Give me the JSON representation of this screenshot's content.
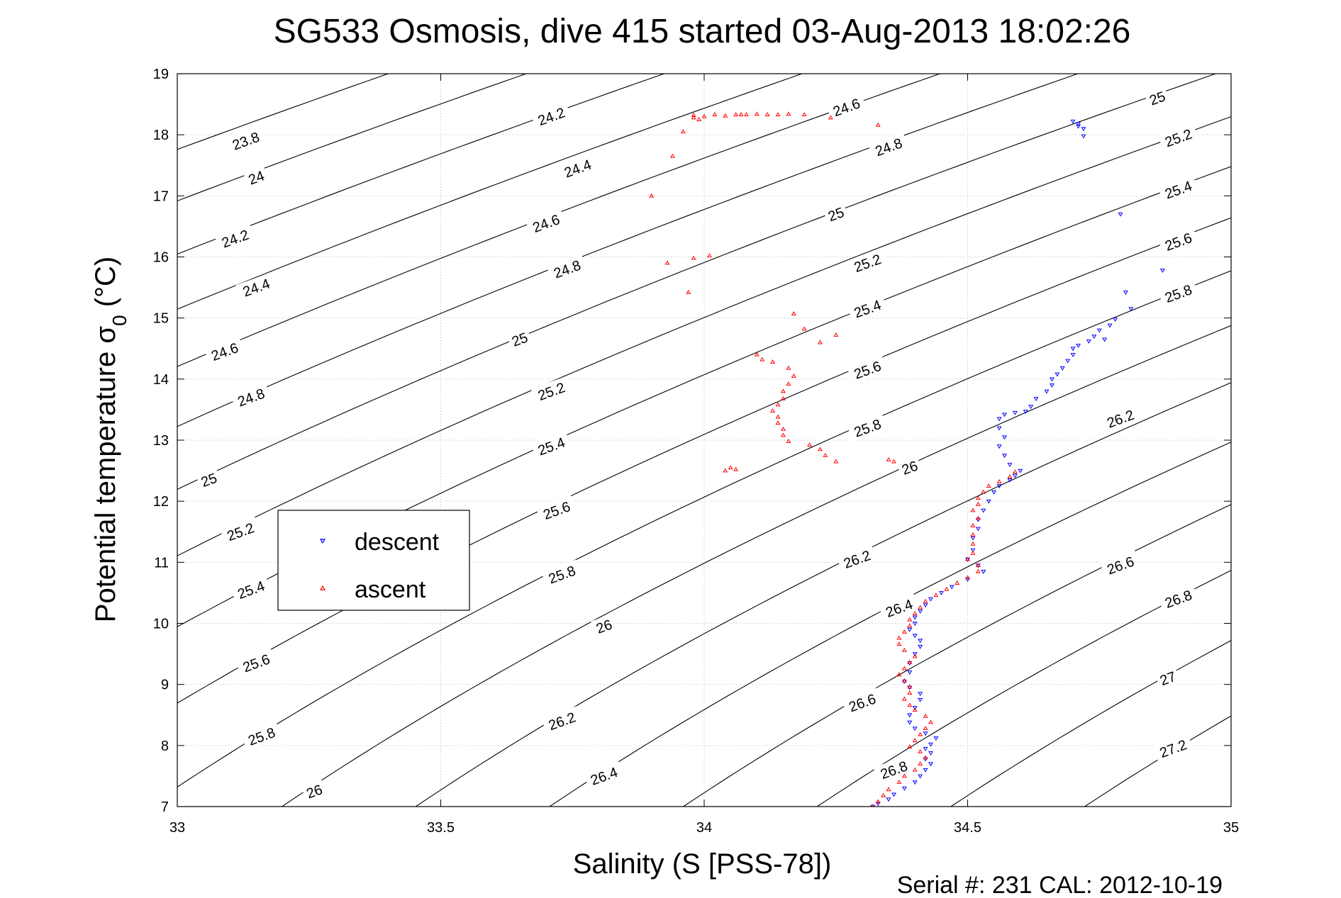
{
  "chart_data": {
    "type": "scatter",
    "title": "SG533 Osmosis, dive 415 started 03-Aug-2013 18:02:26",
    "xlabel": "Salinity (S [PSS-78])",
    "ylabel_main": "Potential temperature σ",
    "ylabel_sub": "0",
    "ylabel_unit": " (°C)",
    "footer": "Serial #: 231  CAL: 2012-10-19",
    "xlim": [
      33,
      35
    ],
    "ylim": [
      7,
      19
    ],
    "x_ticks": [
      "33",
      "33.5",
      "34",
      "34.5",
      "35"
    ],
    "y_ticks": [
      "7",
      "8",
      "9",
      "10",
      "11",
      "12",
      "13",
      "14",
      "15",
      "16",
      "17",
      "18",
      "19"
    ],
    "grid": "dotted",
    "legend_position": "center-left",
    "contours": {
      "quantity": "sigma-theta density",
      "levels": [
        23.8,
        24,
        24.2,
        24.4,
        24.6,
        24.8,
        25,
        25.2,
        25.4,
        25.6,
        25.8,
        26,
        26.2,
        26.4,
        26.6,
        26.8,
        27,
        27.2
      ],
      "labels": [
        {
          "text": "23.8",
          "x": 33.13,
          "y": 17.9
        },
        {
          "text": "24",
          "x": 33.15,
          "y": 17.3
        },
        {
          "text": "24.2",
          "x": 33.11,
          "y": 16.3
        },
        {
          "text": "24.4",
          "x": 33.15,
          "y": 15.5
        },
        {
          "text": "24.6",
          "x": 33.09,
          "y": 14.45
        },
        {
          "text": "24.8",
          "x": 33.14,
          "y": 13.7
        },
        {
          "text": "25",
          "x": 33.06,
          "y": 12.35
        },
        {
          "text": "25.2",
          "x": 33.12,
          "y": 11.5
        },
        {
          "text": "25.4",
          "x": 33.14,
          "y": 10.55
        },
        {
          "text": "25.6",
          "x": 33.15,
          "y": 9.35
        },
        {
          "text": "25.8",
          "x": 33.16,
          "y": 8.15
        },
        {
          "text": "26",
          "x": 33.26,
          "y": 7.25
        },
        {
          "text": "24.2",
          "x": 33.71,
          "y": 18.3
        },
        {
          "text": "24.4",
          "x": 33.76,
          "y": 17.45
        },
        {
          "text": "24.6",
          "x": 33.7,
          "y": 16.55
        },
        {
          "text": "24.8",
          "x": 33.74,
          "y": 15.8
        },
        {
          "text": "25",
          "x": 33.65,
          "y": 14.65
        },
        {
          "text": "25.2",
          "x": 33.71,
          "y": 13.8
        },
        {
          "text": "25.4",
          "x": 33.71,
          "y": 12.9
        },
        {
          "text": "25.6",
          "x": 33.72,
          "y": 11.85
        },
        {
          "text": "25.8",
          "x": 33.73,
          "y": 10.8
        },
        {
          "text": "26",
          "x": 33.81,
          "y": 9.95
        },
        {
          "text": "26.2",
          "x": 33.73,
          "y": 8.4
        },
        {
          "text": "26.4",
          "x": 33.81,
          "y": 7.5
        },
        {
          "text": "24.6",
          "x": 34.27,
          "y": 18.45
        },
        {
          "text": "24.8",
          "x": 34.35,
          "y": 17.8
        },
        {
          "text": "25",
          "x": 34.25,
          "y": 16.7
        },
        {
          "text": "25.2",
          "x": 34.31,
          "y": 15.9
        },
        {
          "text": "25.4",
          "x": 34.31,
          "y": 15.15
        },
        {
          "text": "25.6",
          "x": 34.31,
          "y": 14.15
        },
        {
          "text": "25.8",
          "x": 34.31,
          "y": 13.2
        },
        {
          "text": "26",
          "x": 34.39,
          "y": 12.55
        },
        {
          "text": "26.2",
          "x": 34.29,
          "y": 11.05
        },
        {
          "text": "26.4",
          "x": 34.37,
          "y": 10.25
        },
        {
          "text": "26.6",
          "x": 34.3,
          "y": 8.7
        },
        {
          "text": "26.8",
          "x": 34.36,
          "y": 7.6
        },
        {
          "text": "25",
          "x": 34.86,
          "y": 18.6
        },
        {
          "text": "25.2",
          "x": 34.9,
          "y": 17.95
        },
        {
          "text": "25.4",
          "x": 34.9,
          "y": 17.1
        },
        {
          "text": "25.6",
          "x": 34.9,
          "y": 16.25
        },
        {
          "text": "25.8",
          "x": 34.9,
          "y": 15.4
        },
        {
          "text": "26.2",
          "x": 34.79,
          "y": 13.35
        },
        {
          "text": "26.6",
          "x": 34.79,
          "y": 10.95
        },
        {
          "text": "26.8",
          "x": 34.9,
          "y": 10.4
        },
        {
          "text": "27",
          "x": 34.88,
          "y": 9.1
        },
        {
          "text": "27.2",
          "x": 34.89,
          "y": 7.95
        }
      ]
    },
    "series": [
      {
        "name": "descent",
        "color": "#0000ff",
        "marker": "triangle-down",
        "points": [
          [
            34.7,
            18.22
          ],
          [
            34.71,
            18.18
          ],
          [
            34.71,
            18.14
          ],
          [
            34.72,
            18.1
          ],
          [
            34.72,
            17.98
          ],
          [
            34.79,
            16.7
          ],
          [
            34.87,
            15.78
          ],
          [
            34.8,
            15.42
          ],
          [
            34.81,
            15.15
          ],
          [
            34.78,
            14.98
          ],
          [
            34.77,
            14.88
          ],
          [
            34.75,
            14.8
          ],
          [
            34.74,
            14.7
          ],
          [
            34.76,
            14.65
          ],
          [
            34.73,
            14.62
          ],
          [
            34.71,
            14.55
          ],
          [
            34.7,
            14.5
          ],
          [
            34.7,
            14.4
          ],
          [
            34.69,
            14.3
          ],
          [
            34.68,
            14.18
          ],
          [
            34.67,
            14.08
          ],
          [
            34.66,
            14.0
          ],
          [
            34.66,
            13.9
          ],
          [
            34.65,
            13.8
          ],
          [
            34.63,
            13.68
          ],
          [
            34.62,
            13.55
          ],
          [
            34.61,
            13.47
          ],
          [
            34.59,
            13.45
          ],
          [
            34.57,
            13.42
          ],
          [
            34.56,
            13.35
          ],
          [
            34.56,
            13.2
          ],
          [
            34.57,
            13.05
          ],
          [
            34.56,
            12.9
          ],
          [
            34.57,
            12.75
          ],
          [
            34.58,
            12.6
          ],
          [
            34.6,
            12.5
          ],
          [
            34.59,
            12.42
          ],
          [
            34.58,
            12.35
          ],
          [
            34.56,
            12.25
          ],
          [
            34.55,
            12.15
          ],
          [
            34.54,
            12.0
          ],
          [
            34.53,
            11.85
          ],
          [
            34.52,
            11.7
          ],
          [
            34.52,
            11.55
          ],
          [
            34.51,
            11.4
          ],
          [
            34.51,
            11.2
          ],
          [
            34.5,
            11.05
          ],
          [
            34.52,
            10.95
          ],
          [
            34.53,
            10.85
          ],
          [
            34.5,
            10.72
          ],
          [
            34.47,
            10.6
          ],
          [
            34.45,
            10.5
          ],
          [
            34.43,
            10.4
          ],
          [
            34.42,
            10.3
          ],
          [
            34.41,
            10.2
          ],
          [
            34.4,
            10.1
          ],
          [
            34.4,
            10.0
          ],
          [
            34.39,
            9.9
          ],
          [
            34.4,
            9.8
          ],
          [
            34.41,
            9.72
          ],
          [
            34.41,
            9.62
          ],
          [
            34.4,
            9.5
          ],
          [
            34.39,
            9.35
          ],
          [
            34.39,
            9.2
          ],
          [
            34.38,
            9.05
          ],
          [
            34.39,
            8.95
          ],
          [
            34.41,
            8.85
          ],
          [
            34.41,
            8.75
          ],
          [
            34.4,
            8.62
          ],
          [
            34.39,
            8.5
          ],
          [
            34.39,
            8.38
          ],
          [
            34.4,
            8.28
          ],
          [
            34.42,
            8.2
          ],
          [
            34.44,
            8.12
          ],
          [
            34.43,
            8.02
          ],
          [
            34.42,
            7.95
          ],
          [
            34.43,
            7.88
          ],
          [
            34.42,
            7.78
          ],
          [
            34.43,
            7.7
          ],
          [
            34.42,
            7.6
          ],
          [
            34.41,
            7.5
          ],
          [
            34.4,
            7.4
          ],
          [
            34.38,
            7.3
          ],
          [
            34.36,
            7.2
          ],
          [
            34.35,
            7.12
          ],
          [
            34.33,
            7.05
          ],
          [
            34.32,
            7.0
          ]
        ]
      },
      {
        "name": "ascent",
        "color": "#ff0000",
        "marker": "triangle-up",
        "points": [
          [
            33.98,
            18.32
          ],
          [
            33.98,
            18.28
          ],
          [
            34.0,
            18.3
          ],
          [
            33.99,
            18.25
          ],
          [
            34.02,
            18.33
          ],
          [
            34.04,
            18.31
          ],
          [
            34.06,
            18.33
          ],
          [
            34.07,
            18.33
          ],
          [
            34.08,
            18.33
          ],
          [
            34.1,
            18.34
          ],
          [
            34.12,
            18.33
          ],
          [
            34.14,
            18.33
          ],
          [
            34.16,
            18.34
          ],
          [
            34.19,
            18.33
          ],
          [
            34.24,
            18.28
          ],
          [
            34.33,
            18.16
          ],
          [
            33.96,
            18.05
          ],
          [
            33.94,
            17.65
          ],
          [
            33.9,
            17.0
          ],
          [
            34.01,
            16.02
          ],
          [
            33.98,
            15.98
          ],
          [
            33.93,
            15.9
          ],
          [
            33.97,
            15.42
          ],
          [
            34.17,
            15.07
          ],
          [
            34.19,
            14.82
          ],
          [
            34.25,
            14.72
          ],
          [
            34.22,
            14.6
          ],
          [
            34.1,
            14.4
          ],
          [
            34.11,
            14.32
          ],
          [
            34.13,
            14.28
          ],
          [
            34.16,
            14.18
          ],
          [
            34.17,
            14.05
          ],
          [
            34.16,
            13.92
          ],
          [
            34.15,
            13.8
          ],
          [
            34.15,
            13.68
          ],
          [
            34.14,
            13.58
          ],
          [
            34.13,
            13.48
          ],
          [
            34.14,
            13.38
          ],
          [
            34.14,
            13.28
          ],
          [
            34.15,
            13.18
          ],
          [
            34.15,
            13.08
          ],
          [
            34.16,
            12.98
          ],
          [
            34.2,
            12.92
          ],
          [
            34.22,
            12.85
          ],
          [
            34.23,
            12.75
          ],
          [
            34.25,
            12.65
          ],
          [
            34.05,
            12.55
          ],
          [
            34.06,
            12.52
          ],
          [
            34.04,
            12.5
          ],
          [
            34.35,
            12.68
          ],
          [
            34.36,
            12.65
          ],
          [
            34.59,
            12.48
          ],
          [
            34.58,
            12.4
          ],
          [
            34.56,
            12.32
          ],
          [
            34.54,
            12.25
          ],
          [
            34.53,
            12.15
          ],
          [
            34.52,
            12.05
          ],
          [
            34.52,
            11.95
          ],
          [
            34.51,
            11.85
          ],
          [
            34.52,
            11.72
          ],
          [
            34.51,
            11.6
          ],
          [
            34.51,
            11.45
          ],
          [
            34.51,
            11.3
          ],
          [
            34.51,
            11.15
          ],
          [
            34.5,
            11.05
          ],
          [
            34.52,
            10.95
          ],
          [
            34.52,
            10.85
          ],
          [
            34.5,
            10.75
          ],
          [
            34.48,
            10.66
          ],
          [
            34.46,
            10.56
          ],
          [
            34.44,
            10.46
          ],
          [
            34.42,
            10.36
          ],
          [
            34.41,
            10.26
          ],
          [
            34.4,
            10.16
          ],
          [
            34.39,
            10.06
          ],
          [
            34.39,
            9.96
          ],
          [
            34.38,
            9.86
          ],
          [
            34.37,
            9.76
          ],
          [
            34.37,
            9.66
          ],
          [
            34.38,
            9.56
          ],
          [
            34.4,
            9.46
          ],
          [
            34.39,
            9.36
          ],
          [
            34.38,
            9.26
          ],
          [
            34.37,
            9.16
          ],
          [
            34.38,
            9.06
          ],
          [
            34.39,
            8.96
          ],
          [
            34.39,
            8.86
          ],
          [
            34.38,
            8.76
          ],
          [
            34.39,
            8.66
          ],
          [
            34.4,
            8.58
          ],
          [
            34.42,
            8.48
          ],
          [
            34.43,
            8.38
          ],
          [
            34.42,
            8.28
          ],
          [
            34.41,
            8.18
          ],
          [
            34.4,
            8.08
          ],
          [
            34.39,
            7.98
          ],
          [
            34.41,
            7.9
          ],
          [
            34.42,
            7.8
          ],
          [
            34.41,
            7.7
          ],
          [
            34.4,
            7.6
          ],
          [
            34.38,
            7.5
          ],
          [
            34.37,
            7.4
          ],
          [
            34.35,
            7.28
          ],
          [
            34.34,
            7.18
          ],
          [
            34.33,
            7.08
          ],
          [
            34.32,
            7.0
          ]
        ]
      }
    ]
  }
}
